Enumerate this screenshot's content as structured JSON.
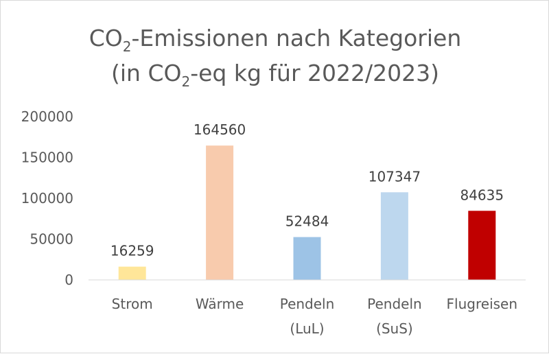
{
  "chart_data": {
    "type": "bar",
    "title": {
      "line1": {
        "main": "CO",
        "sub": "2",
        "rest": "-Emissionen nach Kategorien"
      },
      "line2": {
        "main": "(in CO",
        "sub": "2",
        "rest": "-eq kg für 2022/2023)"
      }
    },
    "categories": [
      [
        "Strom"
      ],
      [
        "Wärme"
      ],
      [
        "Pendeln",
        "(LuL)"
      ],
      [
        "Pendeln",
        "(SuS)"
      ],
      [
        "Flugreisen"
      ]
    ],
    "values": [
      16259,
      164560,
      52484,
      107347,
      84635
    ],
    "data_labels": [
      "16259",
      "164560",
      "52484",
      "107347",
      "84635"
    ],
    "colors": [
      "#FFE699",
      "#F8CBAD",
      "#9DC3E6",
      "#BDD7EE",
      "#C00000"
    ],
    "ylim": [
      0,
      200000
    ],
    "yticks": [
      0,
      50000,
      100000,
      150000,
      200000
    ],
    "ytick_labels": [
      "0",
      "50000",
      "100000",
      "150000",
      "200000"
    ],
    "grid": false,
    "legend": "none",
    "xlabel": "",
    "ylabel": ""
  }
}
